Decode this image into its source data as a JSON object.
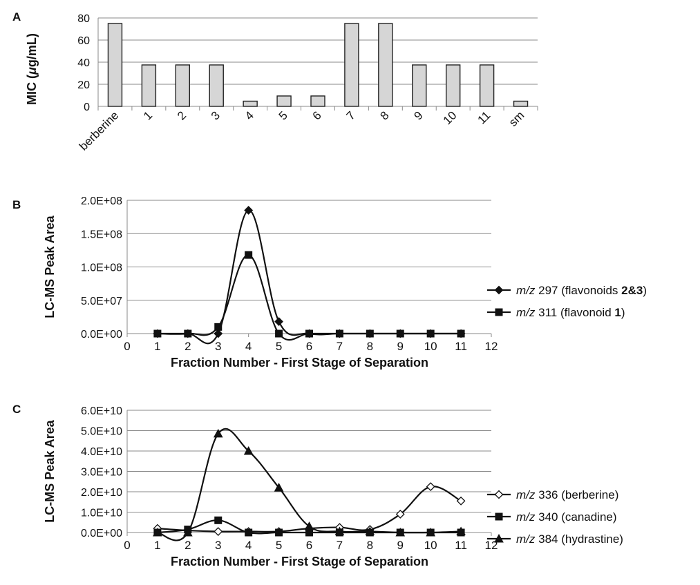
{
  "chart_data": [
    {
      "panel": "A",
      "type": "bar",
      "categories": [
        "berberine",
        "1",
        "2",
        "3",
        "4",
        "5",
        "6",
        "7",
        "8",
        "9",
        "10",
        "11",
        "sm"
      ],
      "values": [
        75,
        37.5,
        37.5,
        37.5,
        4.7,
        9.4,
        9.4,
        75,
        75,
        37.5,
        37.5,
        37.5,
        4.7
      ],
      "ylabel": "MIC (μg/mL)",
      "ylabel_parts": [
        "MIC (",
        "μ",
        "g/mL)"
      ],
      "ylim": [
        0,
        80
      ],
      "yticks": [
        "0",
        "20",
        "40",
        "60",
        "80"
      ],
      "xticks": [
        "berberine",
        "1",
        "2",
        "3",
        "4",
        "5",
        "6",
        "7",
        "8",
        "9",
        "10",
        "11",
        "sm"
      ],
      "grid": true,
      "bar_color": "#d6d6d6"
    },
    {
      "panel": "B",
      "type": "line",
      "x": [
        1,
        2,
        3,
        4,
        5,
        6,
        7,
        8,
        9,
        10,
        11
      ],
      "series": [
        {
          "name": "m/z 297 (flavonoids 2&3)",
          "name_parts": [
            "m/z",
            " 297 (flavonoids ",
            "2&3",
            ")"
          ],
          "marker": "diamond-filled",
          "values": [
            0,
            0,
            0,
            185000000.0,
            18000000.0,
            0,
            0,
            0,
            0,
            0,
            0
          ]
        },
        {
          "name": "m/z 311 (flavonoid 1)",
          "name_parts": [
            "m/z",
            " 311 (flavonoid ",
            "1",
            ")"
          ],
          "marker": "square-filled",
          "values": [
            0,
            0,
            10000000.0,
            118000000.0,
            0,
            0,
            0,
            0,
            0,
            0,
            0
          ]
        }
      ],
      "xlabel": "Fraction Number - First Stage of Separation",
      "ylabel": "LC-MS Peak Area",
      "xlim": [
        0,
        12
      ],
      "ylim": [
        0,
        200000000.0
      ],
      "xticks": [
        "0",
        "1",
        "2",
        "3",
        "4",
        "5",
        "6",
        "7",
        "8",
        "9",
        "10",
        "11",
        "12"
      ],
      "yticks": [
        "0.0E+00",
        "5.0E+07",
        "1.0E+08",
        "1.5E+08",
        "2.0E+08"
      ],
      "grid": true,
      "legend": "right"
    },
    {
      "panel": "C",
      "type": "line",
      "x": [
        1,
        2,
        3,
        4,
        5,
        6,
        7,
        8,
        9,
        10,
        11
      ],
      "series": [
        {
          "name": "m/z 336 (berberine)",
          "name_parts": [
            "m/z",
            " 336 (berberine)",
            "",
            ""
          ],
          "marker": "diamond-open",
          "values": [
            2000000000.0,
            1000000000.0,
            500000000.0,
            500000000.0,
            500000000.0,
            2000000000.0,
            2500000000.0,
            1500000000.0,
            9000000000.0,
            22500000000.0,
            15500000000.0
          ]
        },
        {
          "name": "m/z 340 (canadine)",
          "name_parts": [
            "m/z",
            " 340 (canadine)",
            "",
            ""
          ],
          "marker": "square-filled",
          "values": [
            0,
            1500000000.0,
            6000000000.0,
            0,
            0,
            0,
            0,
            0,
            0,
            0,
            0
          ]
        },
        {
          "name": "m/z 384 (hydrastine)",
          "name_parts": [
            "m/z",
            " 384 (hydrastine)",
            "",
            ""
          ],
          "marker": "triangle-filled",
          "values": [
            0,
            0,
            48500000000.0,
            40000000000.0,
            22000000000.0,
            3000000000.0,
            500000000.0,
            500000000.0,
            0,
            0,
            500000000.0
          ]
        }
      ],
      "xlabel": "Fraction Number - First Stage of Separation",
      "ylabel": "LC-MS Peak Area",
      "xlim": [
        0,
        12
      ],
      "ylim": [
        0,
        60000000000.0
      ],
      "xticks": [
        "0",
        "1",
        "2",
        "3",
        "4",
        "5",
        "6",
        "7",
        "8",
        "9",
        "10",
        "11",
        "12"
      ],
      "yticks": [
        "0.0E+00",
        "1.0E+10",
        "2.0E+10",
        "3.0E+10",
        "4.0E+10",
        "5.0E+10",
        "6.0E+10"
      ],
      "grid": true,
      "legend": "right"
    }
  ]
}
